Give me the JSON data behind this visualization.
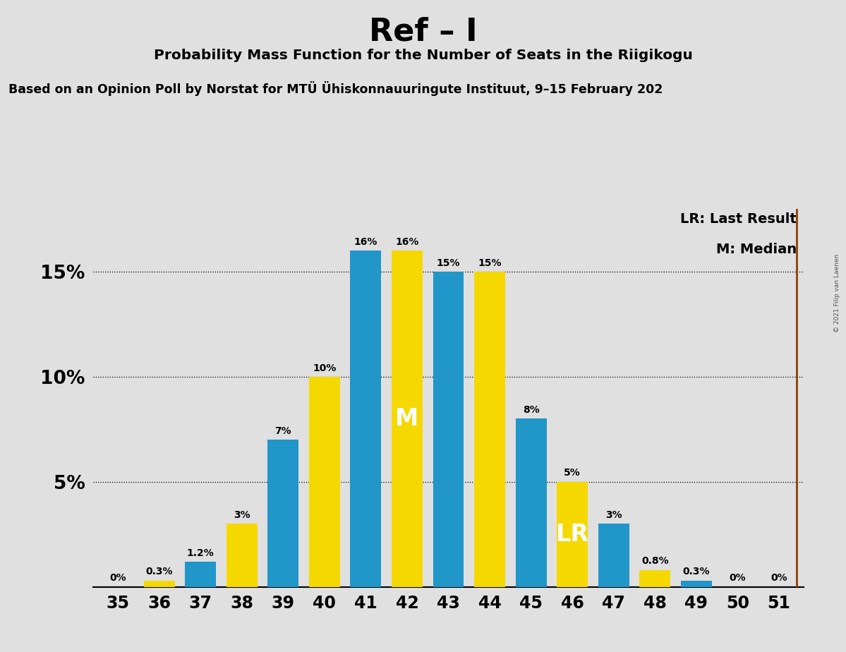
{
  "title": "Ref – I",
  "subtitle": "Probability Mass Function for the Number of Seats in the Riigikogu",
  "source_line": "Based on an Opinion Poll by Norstat for MTÜ Ühiskonnauuringute Instituut, 9–15 February 202",
  "copyright": "© 2021 Filip van Laenen",
  "seats": [
    35,
    36,
    37,
    38,
    39,
    40,
    41,
    42,
    43,
    44,
    45,
    46,
    47,
    48,
    49,
    50,
    51
  ],
  "values": [
    0.0,
    0.3,
    1.2,
    3.0,
    7.0,
    10.0,
    16.0,
    16.0,
    15.0,
    15.0,
    8.0,
    5.0,
    3.0,
    0.8,
    0.3,
    0.0,
    0.0
  ],
  "colors": [
    "#2196C8",
    "#F5D800",
    "#2196C8",
    "#F5D800",
    "#2196C8",
    "#F5D800",
    "#2196C8",
    "#F5D800",
    "#2196C8",
    "#F5D800",
    "#2196C8",
    "#F5D800",
    "#2196C8",
    "#F5D800",
    "#2196C8",
    "#2196C8",
    "#2196C8"
  ],
  "bar_labels": [
    "0%",
    "0.3%",
    "1.2%",
    "3%",
    "7%",
    "10%",
    "16%",
    "16%",
    "15%",
    "15%",
    "8%",
    "5%",
    "3%",
    "0.8%",
    "0.3%",
    "0%",
    "0%"
  ],
  "median_seat": 42,
  "lr_seat": 46,
  "lr_label": "LR",
  "median_label": "M",
  "vline_seat": 51,
  "blue_color": "#2196C8",
  "yellow_color": "#F5D800",
  "vline_color": "#8B4000",
  "background_color": "#E0E0E0",
  "ylim": [
    0,
    18
  ],
  "yticks": [
    5,
    10,
    15
  ],
  "ytick_labels": [
    "5%",
    "10%",
    "15%"
  ],
  "legend_lr": "LR: Last Result",
  "legend_m": "M: Median"
}
